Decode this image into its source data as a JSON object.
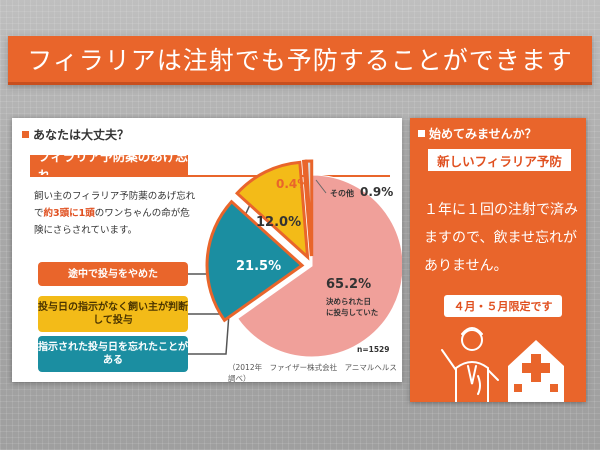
{
  "banner": {
    "title": "フィラリアは注射でも予防することができます"
  },
  "left": {
    "section_heading": "あなたは大丈夫？",
    "chart_heading": "フィラリア予防薬のあげ忘れ",
    "desc_pre": "飼い主のフィラリア予防薬のあげ忘れで",
    "desc_highlight": "約3頭に1頭",
    "desc_post": "のワンちゃんの命が危険にさらされています。",
    "legend": {
      "stopped": "途中で投与をやめた",
      "owner_judged": "投与日の指示がなく飼い主が判断して投与",
      "forgot": "指示された投与日を忘れたことがある"
    },
    "source": "（2012年　ファイザー株式会社　アニマルヘルス調べ）",
    "sample_size": "n=1529"
  },
  "chart_data": {
    "type": "pie",
    "slices": [
      {
        "label": "決められた日に投与していた",
        "value": 65.2,
        "color": "#f0a09a"
      },
      {
        "label": "指示された投与日を忘れたことがある",
        "value": 21.5,
        "color": "#1b8ea1"
      },
      {
        "label": "投与日の指示がなく飼い主が判断して投与",
        "value": 12.0,
        "color": "#f3bb18"
      },
      {
        "label": "途中で投与をやめた",
        "value": 0.4,
        "color": "#e9652b"
      },
      {
        "label": "その他",
        "value": 0.9,
        "color": "#d9d9d9"
      }
    ],
    "value_labels": [
      "65.2%",
      "21.5%",
      "12.0%",
      "0.4%",
      "0.9%"
    ],
    "main_slice_caption": "決められた日に投与していた",
    "other_label": "その他"
  },
  "right": {
    "section_heading": "始めてみませんか？",
    "badge": "新しいフィラリア予防",
    "body": "１年に１回の注射で済みますので、飲ませ忘れがありません。",
    "limited": "４月・５月限定です"
  },
  "colors": {
    "accent": "#e9652b",
    "yellow": "#f3bb18",
    "teal": "#1b8ea1",
    "pink": "#f0a09a"
  },
  "icons": [
    "doctor-illustration-icon",
    "hospital-icon"
  ]
}
